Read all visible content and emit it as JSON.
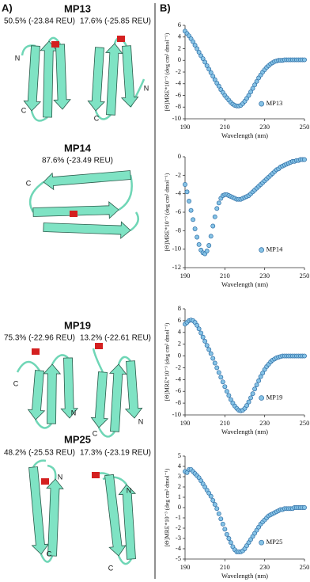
{
  "panels": {
    "a": "A)",
    "b": "B)"
  },
  "structures": [
    {
      "title": "MP13",
      "poses": [
        {
          "label": "50.5% (-23.84 REU)",
          "termini": [
            "N",
            "C"
          ]
        },
        {
          "label": "17.6% (-25.85 REU)",
          "termini": [
            "N",
            "C"
          ]
        }
      ]
    },
    {
      "title": "MP14",
      "poses": [
        {
          "label": "87.6% (-23.49 REU)",
          "termini": [
            "C"
          ]
        }
      ]
    },
    {
      "title": "MP19",
      "poses": [
        {
          "label": "75.3% (-22.96 REU)",
          "termini": [
            "C",
            "N"
          ]
        },
        {
          "label": "13.2% (-22.61 REU)",
          "termini": [
            "N",
            "C"
          ]
        }
      ]
    },
    {
      "title": "MP25",
      "poses": [
        {
          "label": "48.2% (-25.53 REU)",
          "termini": [
            "N",
            "C"
          ]
        },
        {
          "label": "17.3% (-23.19 REU)",
          "termini": [
            "N",
            "C"
          ]
        }
      ]
    }
  ],
  "chart_data": [
    {
      "type": "scatter",
      "xlabel": "Wavelength (nm)",
      "ylabel": "[Θ]MRE*10⁻³ (deg cm² dmol⁻¹)",
      "legend": "lower right",
      "marker_edge": "#2e6da4",
      "xlim": [
        190,
        250
      ],
      "xticks": [
        190,
        210,
        230,
        250
      ],
      "ylim": [
        -10,
        6
      ],
      "yticks": [
        -10,
        -8,
        -6,
        -4,
        -2,
        0,
        2,
        4,
        6
      ],
      "x": [
        190,
        191,
        192,
        193,
        194,
        195,
        196,
        197,
        198,
        199,
        200,
        201,
        202,
        203,
        204,
        205,
        206,
        207,
        208,
        209,
        210,
        211,
        212,
        213,
        214,
        215,
        216,
        217,
        218,
        219,
        220,
        221,
        222,
        223,
        224,
        225,
        226,
        227,
        228,
        229,
        230,
        231,
        232,
        233,
        234,
        235,
        236,
        237,
        238,
        239,
        240,
        241,
        242,
        243,
        244,
        245,
        246,
        247,
        248,
        249,
        250
      ],
      "series": [
        {
          "name": "MP13",
          "color": "#86c3e6",
          "values": [
            5.0,
            4.6,
            4.2,
            3.7,
            3.2,
            2.6,
            2.0,
            1.4,
            0.8,
            0.3,
            -0.3,
            -0.9,
            -1.5,
            -2.1,
            -2.7,
            -3.3,
            -3.9,
            -4.4,
            -5.0,
            -5.5,
            -6.0,
            -6.4,
            -6.8,
            -7.2,
            -7.5,
            -7.7,
            -7.8,
            -7.8,
            -7.7,
            -7.4,
            -7.0,
            -6.5,
            -6.0,
            -5.4,
            -4.8,
            -4.2,
            -3.6,
            -3.0,
            -2.5,
            -2.0,
            -1.6,
            -1.2,
            -0.9,
            -0.6,
            -0.4,
            -0.2,
            -0.1,
            0,
            0,
            0,
            0.1,
            0.1,
            0.1,
            0.1,
            0.1,
            0.1,
            0.1,
            0.1,
            0.1,
            0.1,
            0.1
          ]
        }
      ]
    },
    {
      "type": "scatter",
      "xlabel": "Wavelength (nm)",
      "ylabel": "[Θ]MRE*10⁻³ (deg cm² dmol⁻¹)",
      "legend": "lower right",
      "marker_edge": "#2e6da4",
      "xlim": [
        190,
        250
      ],
      "xticks": [
        190,
        210,
        230,
        250
      ],
      "ylim": [
        -12,
        0
      ],
      "yticks": [
        -12,
        -10,
        -8,
        -6,
        -4,
        -2,
        0
      ],
      "x": [
        190,
        191,
        192,
        193,
        194,
        195,
        196,
        197,
        198,
        199,
        200,
        201,
        202,
        203,
        204,
        205,
        206,
        207,
        208,
        209,
        210,
        211,
        212,
        213,
        214,
        215,
        216,
        217,
        218,
        219,
        220,
        221,
        222,
        223,
        224,
        225,
        226,
        227,
        228,
        229,
        230,
        231,
        232,
        233,
        234,
        235,
        236,
        237,
        238,
        239,
        240,
        241,
        242,
        243,
        244,
        245,
        246,
        247,
        248,
        249,
        250
      ],
      "series": [
        {
          "name": "MP14",
          "color": "#86c3e6",
          "values": [
            -3.0,
            -3.8,
            -4.8,
            -5.8,
            -6.8,
            -7.8,
            -8.7,
            -9.5,
            -10.1,
            -10.4,
            -10.5,
            -10.2,
            -9.6,
            -8.6,
            -7.5,
            -6.5,
            -5.6,
            -5.0,
            -4.5,
            -4.2,
            -4.1,
            -4.1,
            -4.2,
            -4.3,
            -4.4,
            -4.5,
            -4.6,
            -4.6,
            -4.6,
            -4.5,
            -4.4,
            -4.3,
            -4.2,
            -4.0,
            -3.8,
            -3.6,
            -3.4,
            -3.2,
            -3.0,
            -2.8,
            -2.6,
            -2.4,
            -2.2,
            -2.0,
            -1.8,
            -1.6,
            -1.4,
            -1.3,
            -1.1,
            -1.0,
            -0.9,
            -0.8,
            -0.7,
            -0.6,
            -0.5,
            -0.5,
            -0.4,
            -0.4,
            -0.3,
            -0.3,
            -0.3
          ]
        }
      ]
    },
    {
      "type": "scatter",
      "xlabel": "Wavelength (nm)",
      "ylabel": "[Θ]MRE*10⁻³ (deg cm² dmol⁻¹)",
      "legend": "lower right",
      "marker_edge": "#2e6da4",
      "xlim": [
        190,
        250
      ],
      "xticks": [
        190,
        210,
        230,
        250
      ],
      "ylim": [
        -10,
        8
      ],
      "yticks": [
        -10,
        -8,
        -6,
        -4,
        -2,
        0,
        2,
        4,
        6,
        8
      ],
      "x": [
        190,
        191,
        192,
        193,
        194,
        195,
        196,
        197,
        198,
        199,
        200,
        201,
        202,
        203,
        204,
        205,
        206,
        207,
        208,
        209,
        210,
        211,
        212,
        213,
        214,
        215,
        216,
        217,
        218,
        219,
        220,
        221,
        222,
        223,
        224,
        225,
        226,
        227,
        228,
        229,
        230,
        231,
        232,
        233,
        234,
        235,
        236,
        237,
        238,
        239,
        240,
        241,
        242,
        243,
        244,
        245,
        246,
        247,
        248,
        249,
        250
      ],
      "series": [
        {
          "name": "MP19",
          "color": "#86c3e6",
          "values": [
            5.4,
            5.7,
            6.0,
            6.1,
            6.0,
            5.7,
            5.2,
            4.6,
            3.9,
            3.2,
            2.5,
            1.8,
            1.1,
            0.4,
            -0.4,
            -1.2,
            -2.0,
            -2.8,
            -3.6,
            -4.4,
            -5.2,
            -6.0,
            -6.7,
            -7.4,
            -8.0,
            -8.5,
            -8.9,
            -9.2,
            -9.3,
            -9.2,
            -8.9,
            -8.4,
            -7.8,
            -7.1,
            -6.4,
            -5.6,
            -4.9,
            -4.2,
            -3.5,
            -2.9,
            -2.3,
            -1.8,
            -1.4,
            -1.0,
            -0.7,
            -0.5,
            -0.3,
            -0.2,
            -0.1,
            0,
            0,
            0,
            0,
            0,
            0,
            0,
            0,
            0,
            0,
            0,
            0
          ]
        }
      ]
    },
    {
      "type": "scatter",
      "xlabel": "Wavelength (nm)",
      "ylabel": "[Θ]MRE*10⁻³ (deg cm² dmol⁻¹)",
      "legend": "lower right",
      "marker_edge": "#2e6da4",
      "xlim": [
        190,
        250
      ],
      "xticks": [
        190,
        210,
        230,
        250
      ],
      "ylim": [
        -5,
        5
      ],
      "yticks": [
        -5,
        -4,
        -3,
        -2,
        -1,
        0,
        1,
        2,
        3,
        4,
        5
      ],
      "x": [
        190,
        191,
        192,
        193,
        194,
        195,
        196,
        197,
        198,
        199,
        200,
        201,
        202,
        203,
        204,
        205,
        206,
        207,
        208,
        209,
        210,
        211,
        212,
        213,
        214,
        215,
        216,
        217,
        218,
        219,
        220,
        221,
        222,
        223,
        224,
        225,
        226,
        227,
        228,
        229,
        230,
        231,
        232,
        233,
        234,
        235,
        236,
        237,
        238,
        239,
        240,
        241,
        242,
        243,
        244,
        245,
        246,
        247,
        248,
        249,
        250
      ],
      "series": [
        {
          "name": "MP25",
          "color": "#86c3e6",
          "values": [
            3.5,
            3.4,
            3.7,
            3.7,
            3.5,
            3.3,
            3.1,
            2.9,
            2.6,
            2.3,
            2.0,
            1.7,
            1.4,
            1.1,
            0.7,
            0.3,
            -0.1,
            -0.6,
            -1.1,
            -1.6,
            -2.1,
            -2.6,
            -3.0,
            -3.4,
            -3.8,
            -4.1,
            -4.3,
            -4.3,
            -4.3,
            -4.2,
            -4.0,
            -3.7,
            -3.4,
            -3.1,
            -2.8,
            -2.5,
            -2.2,
            -1.9,
            -1.6,
            -1.4,
            -1.2,
            -1.0,
            -0.8,
            -0.7,
            -0.6,
            -0.5,
            -0.4,
            -0.3,
            -0.2,
            -0.2,
            -0.1,
            -0.1,
            -0.1,
            -0.1,
            -0.1,
            0,
            0,
            0,
            0,
            0,
            0
          ]
        }
      ]
    }
  ]
}
